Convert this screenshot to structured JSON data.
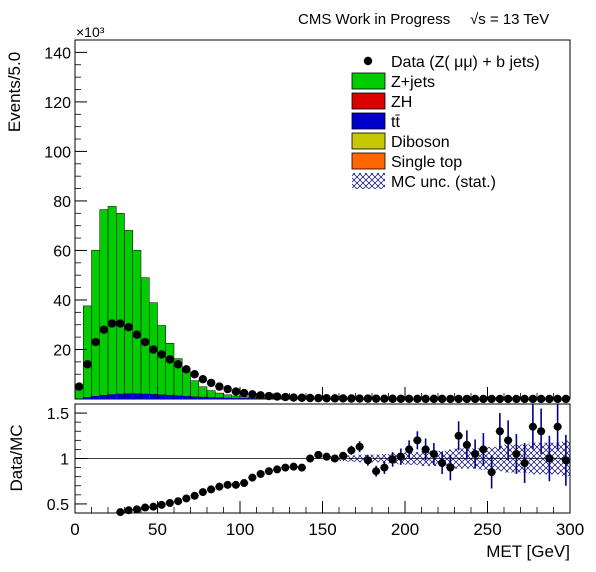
{
  "header": {
    "left": "CMS Work in Progress",
    "right": "√s = 13 TeV"
  },
  "top_panel": {
    "ylabel": "Events/5.0",
    "yexponent": "×10³",
    "ylim": [
      0,
      145
    ],
    "yticks": [
      20,
      40,
      60,
      80,
      100,
      120,
      140
    ]
  },
  "ratio_panel": {
    "ylabel": "Data/MC",
    "ylim": [
      0.4,
      1.6
    ],
    "yticks": [
      0.5,
      1,
      1.5
    ]
  },
  "xaxis": {
    "label": "MET [GeV]",
    "xlim": [
      0,
      300
    ],
    "ticks": [
      0,
      50,
      100,
      150,
      200,
      250,
      300
    ]
  },
  "legend": [
    {
      "key": "data",
      "label": "Data (Z( μμ) + b jets)",
      "color": "#000000"
    },
    {
      "key": "zjets",
      "label": "Z+jets",
      "color": "#00cc00"
    },
    {
      "key": "zh",
      "label": "ZH",
      "color": "#dd0000"
    },
    {
      "key": "ttbar",
      "label": "tt̄",
      "color": "#0000cc"
    },
    {
      "key": "diboson",
      "label": "Diboson",
      "color": "#c8c800"
    },
    {
      "key": "singletop",
      "label": "Single top",
      "color": "#ff6600"
    },
    {
      "key": "mcunc",
      "label": "MC unc. (stat.)",
      "color": "#000066"
    }
  ],
  "chart_data": [
    {
      "type": "bar",
      "title": "",
      "xlabel": "MET [GeV]",
      "ylabel": "Events/5.0",
      "y_scale_note": "×10³",
      "bin_width": 5,
      "bin_edges_start": 0,
      "series": [
        {
          "name": "Z+jets",
          "color": "#00cc00",
          "values": [
            4.5,
            37,
            59,
            75,
            76,
            73,
            66,
            58,
            47,
            37,
            28,
            21,
            15,
            10,
            6.5,
            4.2,
            2.8,
            1.9,
            1.3,
            0.9,
            0.65,
            0.5,
            0.4,
            0.32,
            0.27,
            0.23,
            0.2,
            0.18,
            0.16,
            0.14,
            0.13,
            0.12,
            0.11,
            0.1,
            0.09,
            0.08,
            0.08,
            0.07,
            0.07,
            0.06,
            0.06,
            0.05,
            0.05,
            0.05,
            0.04,
            0.04,
            0.04,
            0.04,
            0.03,
            0.03,
            0.03,
            0.03,
            0.03,
            0.02,
            0.02,
            0.02,
            0.02,
            0.02,
            0.02,
            0.02
          ]
        },
        {
          "name": "tt̄",
          "color": "#0000cc",
          "values": [
            0.1,
            0.6,
            1.1,
            1.5,
            1.8,
            2.0,
            2.1,
            2.1,
            2.0,
            1.9,
            1.7,
            1.5,
            1.3,
            1.1,
            0.9,
            0.75,
            0.6,
            0.5,
            0.4,
            0.33,
            0.27,
            0.22,
            0.18,
            0.15,
            0.13,
            0.11,
            0.09,
            0.08,
            0.07,
            0.06,
            0.05,
            0.05,
            0.04,
            0.04,
            0.03,
            0.03,
            0.03,
            0.02,
            0.02,
            0.02,
            0.02,
            0.02,
            0.01,
            0.01,
            0.01,
            0.01,
            0.01,
            0.01,
            0.01,
            0.01,
            0.01,
            0.01,
            0.01,
            0.01,
            0.01,
            0.01,
            0.01,
            0.01,
            0.01,
            0.01
          ]
        }
      ],
      "data": {
        "name": "Data (Z( μμ) + b jets)",
        "values": [
          5,
          14,
          23,
          28,
          30.5,
          30.5,
          29,
          26,
          23,
          20,
          18,
          16,
          14,
          12,
          10,
          8,
          6.5,
          5,
          4,
          3,
          2.4,
          1.9,
          1.5,
          1.2,
          1.0,
          0.8,
          0.6,
          0.5,
          0.4,
          0.35,
          0.3,
          0.26,
          0.23,
          0.2,
          0.18,
          0.16,
          0.14,
          0.12,
          0.1,
          0.09,
          0.08,
          0.07,
          0.06,
          0.05,
          0.05,
          0.04,
          0.04,
          0.04,
          0.03,
          0.03,
          0.03,
          0.03,
          0.03,
          0.02,
          0.02,
          0.02,
          0.02,
          0.02,
          0.02,
          0.02
        ]
      },
      "ylim": [
        0,
        145
      ]
    },
    {
      "type": "scatter",
      "title": "",
      "xlabel": "MET [GeV]",
      "ylabel": "Data/MC",
      "x": [
        27.5,
        32.5,
        37.5,
        42.5,
        47.5,
        52.5,
        57.5,
        62.5,
        67.5,
        72.5,
        77.5,
        82.5,
        87.5,
        92.5,
        97.5,
        102.5,
        107.5,
        112.5,
        117.5,
        122.5,
        127.5,
        132.5,
        137.5,
        142.5,
        147.5,
        152.5,
        157.5,
        162.5,
        167.5,
        172.5,
        177.5,
        182.5,
        187.5,
        192.5,
        197.5,
        202.5,
        207.5,
        212.5,
        217.5,
        222.5,
        227.5,
        232.5,
        237.5,
        242.5,
        247.5,
        252.5,
        257.5,
        262.5,
        267.5,
        272.5,
        277.5,
        282.5,
        287.5,
        292.5,
        297.5
      ],
      "y": [
        0.41,
        0.43,
        0.44,
        0.46,
        0.47,
        0.49,
        0.51,
        0.53,
        0.56,
        0.59,
        0.63,
        0.66,
        0.69,
        0.71,
        0.71,
        0.73,
        0.79,
        0.83,
        0.86,
        0.88,
        0.9,
        0.91,
        0.9,
        1.0,
        1.04,
        1.02,
        1.0,
        1.03,
        1.09,
        1.13,
        0.98,
        0.86,
        0.9,
        0.99,
        1.02,
        1.1,
        1.2,
        1.1,
        1.05,
        0.95,
        0.9,
        1.25,
        1.15,
        1.05,
        1.1,
        0.85,
        1.3,
        1.2,
        1.05,
        0.95,
        1.35,
        1.3,
        1.0,
        1.35,
        0.98
      ],
      "yerr": [
        0.01,
        0.01,
        0.01,
        0.01,
        0.01,
        0.01,
        0.01,
        0.01,
        0.01,
        0.01,
        0.01,
        0.01,
        0.01,
        0.01,
        0.01,
        0.01,
        0.02,
        0.02,
        0.02,
        0.02,
        0.02,
        0.03,
        0.03,
        0.03,
        0.03,
        0.03,
        0.04,
        0.04,
        0.05,
        0.06,
        0.06,
        0.06,
        0.07,
        0.08,
        0.09,
        0.1,
        0.1,
        0.12,
        0.12,
        0.12,
        0.14,
        0.16,
        0.16,
        0.16,
        0.18,
        0.18,
        0.2,
        0.22,
        0.22,
        0.22,
        0.25,
        0.25,
        0.25,
        0.25,
        0.28
      ],
      "ylim": [
        0.4,
        1.6
      ]
    }
  ]
}
